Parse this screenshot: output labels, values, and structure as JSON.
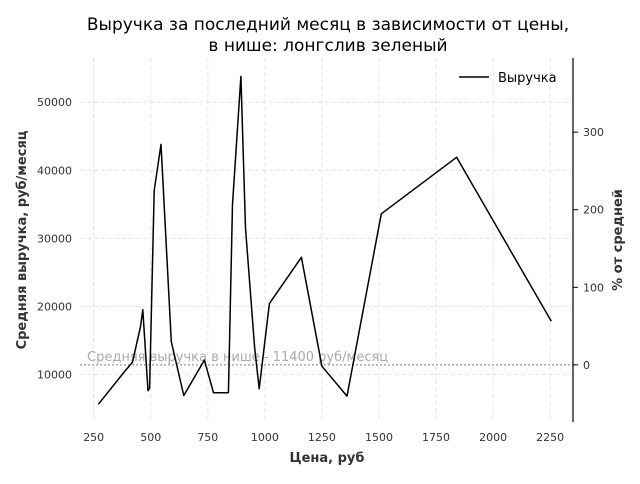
{
  "chart_data": {
    "type": "line",
    "title_line1": "Выручка за последний месяц в зависимости от цены,",
    "title_line2": "в нише: лонгслив зеленый",
    "xlabel": "Цена, руб",
    "ylabel": "Средняя выручка, руб/месяц",
    "ylabel_right": "% от средней",
    "xlim": [
      190,
      2350
    ],
    "ylim": [
      3000,
      56500
    ],
    "x_ticks": [
      250,
      500,
      750,
      1000,
      1250,
      1500,
      1750,
      2000,
      2250
    ],
    "y_ticks": [
      10000,
      20000,
      30000,
      40000,
      50000
    ],
    "y2_ticks": [
      0,
      100,
      200,
      300
    ],
    "grid": true,
    "legend_position": "top-right",
    "reference_value": 11400,
    "annotation": "Средняя выручка в нише - 11400 руб/месяц",
    "series": [
      {
        "name": "Выручка",
        "color": "#000000",
        "x": [
          270,
          380,
          420,
          455,
          465,
          488,
          495,
          515,
          545,
          590,
          645,
          735,
          775,
          840,
          847,
          858,
          895,
          915,
          955,
          975,
          1020,
          1160,
          1250,
          1360,
          1510,
          1840,
          2255
        ],
        "y": [
          5600,
          10200,
          11800,
          17000,
          19500,
          7600,
          8000,
          37000,
          43800,
          14800,
          6900,
          12100,
          7300,
          7300,
          18000,
          35000,
          53800,
          31500,
          14000,
          7900,
          20400,
          27200,
          11200,
          6800,
          33600,
          41900,
          17800
        ]
      }
    ]
  }
}
